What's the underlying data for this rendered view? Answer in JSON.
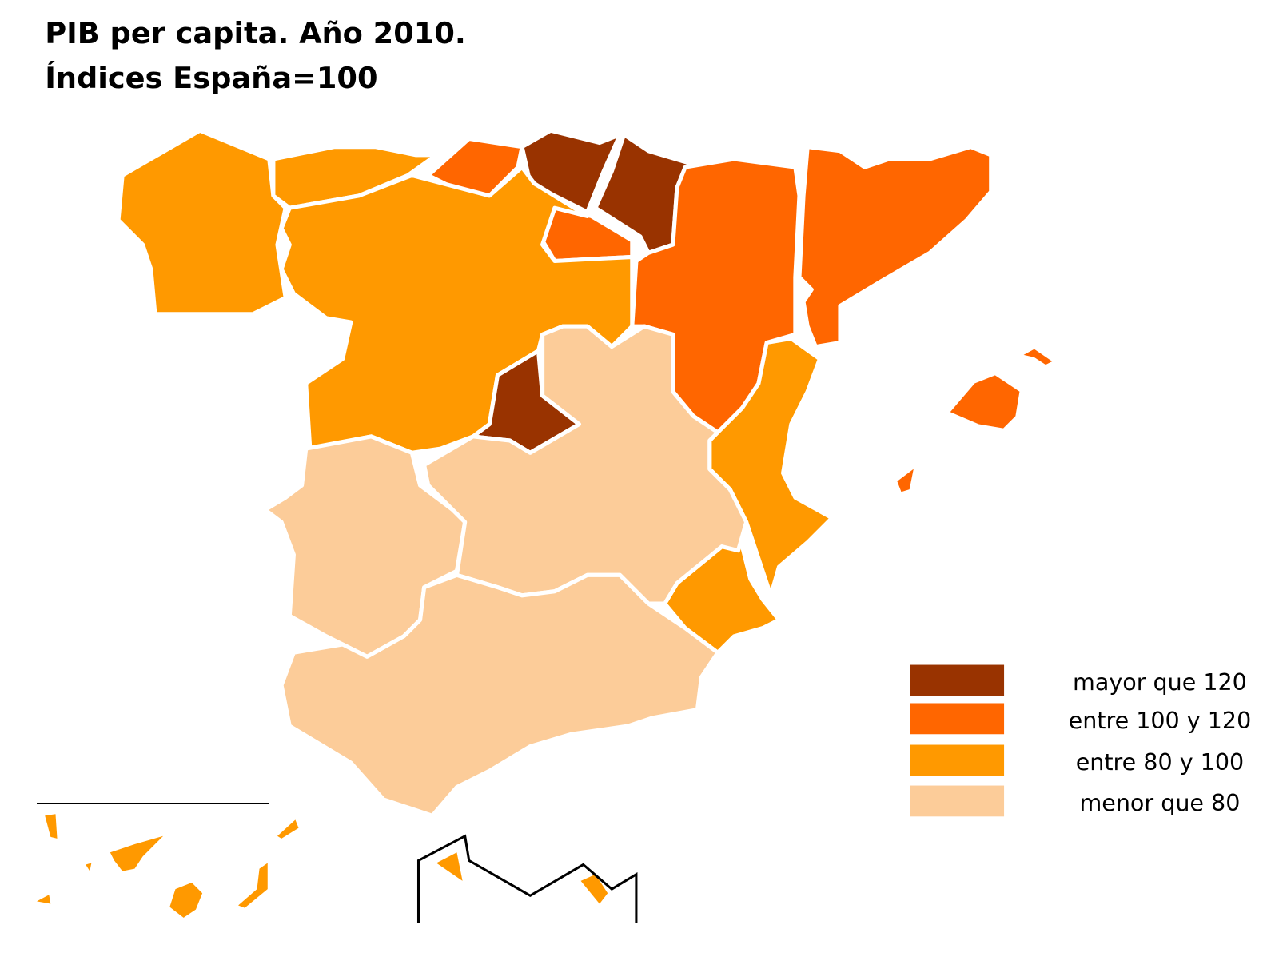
{
  "title": "PIB per capita. Año 2010.",
  "subtitle": "Índices España=100",
  "legend": [
    {
      "label": "mayor que 120",
      "color": "#993300"
    },
    {
      "label": "entre 100 y 120",
      "color": "#ff6600"
    },
    {
      "label": "entre 80 y 100",
      "color": "#ff9900"
    },
    {
      "label": "menor que 80",
      "color": "#fccc99"
    }
  ]
}
